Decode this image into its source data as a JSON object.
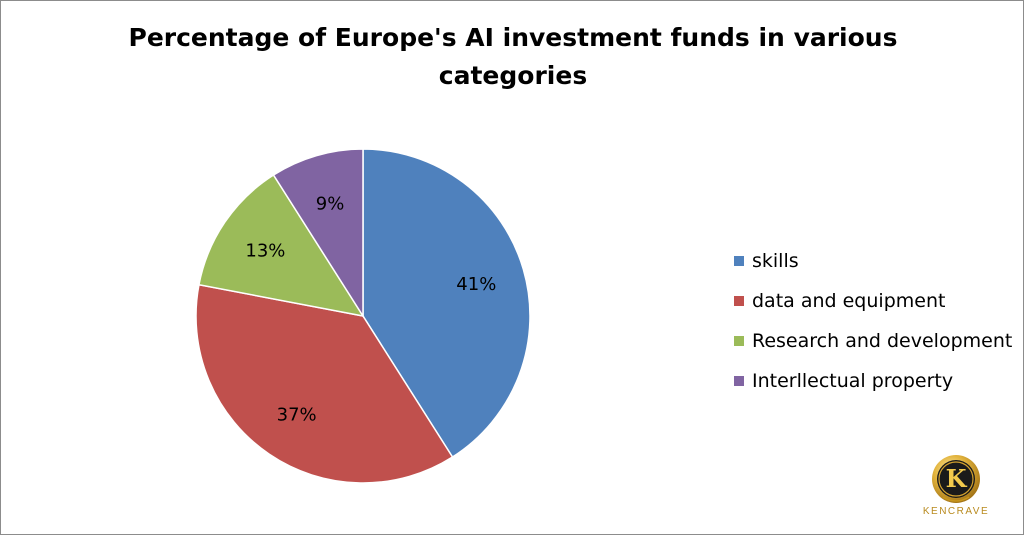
{
  "chart_data": {
    "type": "pie",
    "title_lines": [
      "Percentage of  Europe's AI investment  funds in various",
      "categories"
    ],
    "categories": [
      "skills",
      "data and equipment",
      "Research and development",
      "Interllectual property"
    ],
    "values": [
      41,
      37,
      13,
      9
    ],
    "data_labels": [
      "41%",
      "37%",
      "13%",
      "9%"
    ],
    "colors": [
      "#4f81bd",
      "#c0504d",
      "#9bbb59",
      "#8064a2"
    ],
    "start_angle_deg": 0,
    "direction": "clockwise",
    "legend_position": "right"
  },
  "branding": {
    "logo_letter": "K",
    "logo_text": "KENCRAVE",
    "logo_colors": [
      "#f5d76e",
      "#c8961e",
      "#1a1a1a"
    ]
  }
}
